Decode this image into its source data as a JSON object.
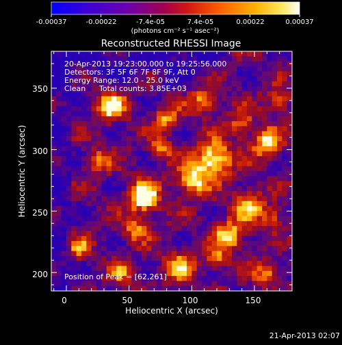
{
  "colorbar": {
    "tick_labels": [
      "-0.00037",
      "-0.00022",
      "-7.4e-05",
      "7.4e-05",
      "0.00022",
      "0.00037"
    ],
    "unit_label": "(photons cm⁻² s⁻¹ asec⁻²)",
    "colors": [
      "#0000ff",
      "#4b00c8",
      "#8000a0",
      "#b01040",
      "#e03000",
      "#ff8000",
      "#ffd000",
      "#ffffff"
    ]
  },
  "plot": {
    "title": "Reconstructed RHESSI Image",
    "xlabel": "Heliocentric X (arcsec)",
    "ylabel": "Heliocentric Y (arcsec)",
    "x_ticks": [
      "0",
      "50",
      "100",
      "150"
    ],
    "y_ticks": [
      "200",
      "250",
      "300",
      "350"
    ],
    "x_range": [
      -12,
      180
    ],
    "y_range": [
      185,
      380
    ],
    "annotations": {
      "time_range": "20-Apr-2013 19:23:00.000 to 19:25:56.000",
      "detectors": "Detectors: 3F 5F 6F 7F 8F 9F, Att 0",
      "energy": "Energy Range: 12.0 - 25.0 keV",
      "method": "Clean",
      "counts": "Total counts: 3.85E+03",
      "peak": "Position of Peak = [62,261]"
    },
    "peak_position": [
      62,
      261
    ]
  },
  "footer": {
    "timestamp": "21-Apr-2013 02:07"
  }
}
